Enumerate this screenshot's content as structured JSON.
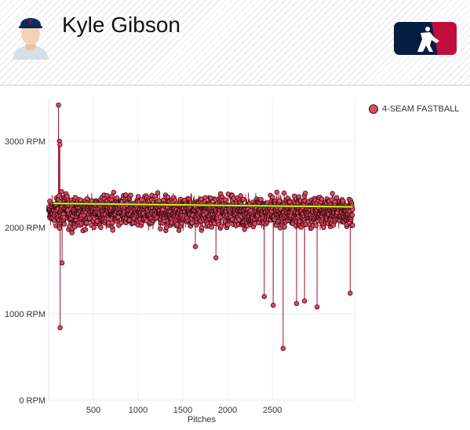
{
  "header": {
    "player_name": "Kyle Gibson",
    "logo_icon": "mlb-logo",
    "avatar_icon": "player-headshot"
  },
  "colors": {
    "series": "#e04a5f",
    "series_stroke": "#9e1a30",
    "trend": "#ccff00",
    "logo_blue": "#041e42",
    "logo_red": "#bf0d3e"
  },
  "chart_data": {
    "type": "line",
    "xlabel": "Pitches",
    "ylabel": "",
    "title": "",
    "xlim": [
      0,
      3420
    ],
    "ylim": [
      0,
      3500
    ],
    "x_ticks": [
      500,
      1000,
      1500,
      2000,
      2500
    ],
    "y_ticks": [
      0,
      1000,
      2000,
      3000
    ],
    "y_tick_labels": [
      "0 RPM",
      "1000 RPM",
      "2000 RPM",
      "3000 RPM"
    ],
    "grid": true,
    "legend_position": "top-right",
    "series": [
      {
        "name": "4-SEAM FASTBALL",
        "approx_pitch_count": 3400,
        "typical_range": [
          1950,
          2420
        ],
        "notable_points": [
          {
            "x": 110,
            "y": 3420
          },
          {
            "x": 120,
            "y": 3000
          },
          {
            "x": 125,
            "y": 2960
          },
          {
            "x": 128,
            "y": 840
          },
          {
            "x": 150,
            "y": 1590
          },
          {
            "x": 1640,
            "y": 1780
          },
          {
            "x": 1870,
            "y": 1650
          },
          {
            "x": 2410,
            "y": 1200
          },
          {
            "x": 2510,
            "y": 1100
          },
          {
            "x": 2620,
            "y": 600
          },
          {
            "x": 2770,
            "y": 1120
          },
          {
            "x": 2860,
            "y": 1150
          },
          {
            "x": 3000,
            "y": 1080
          },
          {
            "x": 3370,
            "y": 1240
          }
        ]
      }
    ],
    "trend_line": {
      "name": "",
      "points": [
        [
          50,
          2280
        ],
        [
          3400,
          2240
        ]
      ]
    }
  }
}
